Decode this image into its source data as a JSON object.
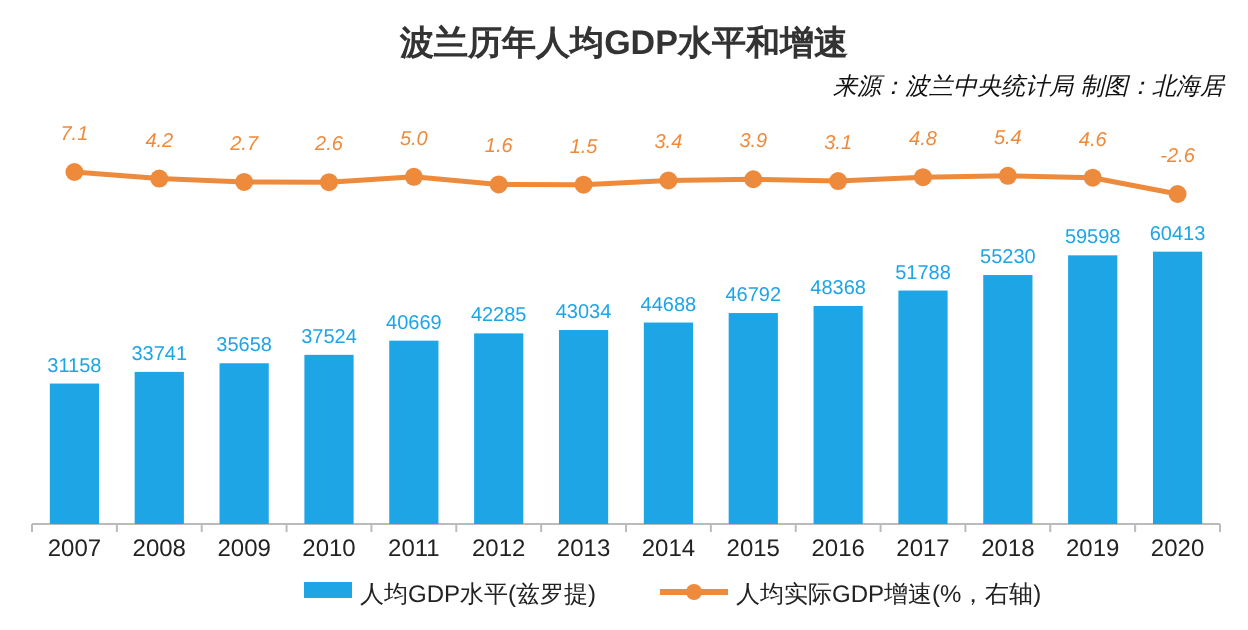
{
  "chart_data": [
    {
      "type": "line",
      "title": "波兰历年人均GDP水平和增速",
      "annotations": [
        "来源：波兰中央统计局  制图：北海居"
      ],
      "categories": [
        null,
        null,
        null,
        null,
        null,
        null,
        null,
        null,
        null,
        null,
        null,
        null,
        null,
        null
      ],
      "series": [
        {
          "name": "人均实际GDP增速(%，右轴)",
          "color": "#ee8a3c",
          "values": [
            7.1,
            4.2,
            2.7,
            2.6,
            5.0,
            1.6,
            1.5,
            3.4,
            3.9,
            3.1,
            4.8,
            5.4,
            4.6,
            -2.6
          ],
          "value_labels": [
            "7.1",
            "4.2",
            "2.7",
            "2.6",
            "5.0",
            "1.6",
            "1.5",
            "3.4",
            "3.9",
            "3.1",
            "4.8",
            "5.4",
            "4.6",
            "-2.6"
          ]
        }
      ],
      "marker": "circle",
      "legend": "bottom",
      "tick_labels": false
    },
    {
      "type": "bar",
      "categories": [
        "2007",
        "2008",
        "2009",
        "2010",
        "2011",
        "2012",
        "2013",
        "2014",
        "2015",
        "2016",
        "2017",
        "2018",
        "2019",
        "2020"
      ],
      "series": [
        {
          "name": "人均GDP水平(兹罗提)",
          "color": "#1ea5e6",
          "values": [
            31158,
            33741,
            35658,
            37524,
            40669,
            42285,
            43034,
            44688,
            46792,
            48368,
            51788,
            55230,
            59598,
            60413
          ]
        }
      ],
      "data_labels": true,
      "legend": "bottom",
      "tick_labels": "x"
    }
  ]
}
